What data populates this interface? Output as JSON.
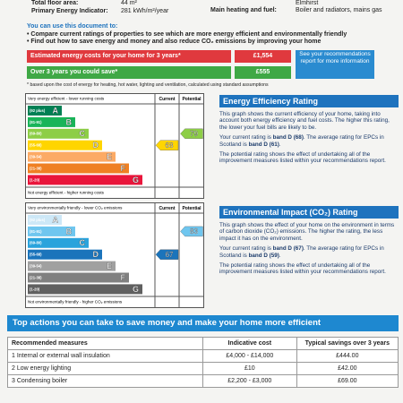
{
  "header": {
    "fields": [
      {
        "label": "Total floor area:",
        "value": "44 m²"
      },
      {
        "label": "Primary Energy Indicator:",
        "value": "281 kWh/m²/year"
      },
      {
        "label": "Main heating and fuel:",
        "value": "Boiler and radiators, mains gas"
      }
    ],
    "org": "Elmhirst"
  },
  "intro": {
    "heading": "You can use this document to:",
    "bullets": [
      "Compare current ratings of properties to see which are more energy efficient and environmentally friendly",
      "Find out how to save energy and money and also reduce CO₂ emissions by improving your home"
    ]
  },
  "costs": {
    "rows": [
      {
        "label": "Estimated energy costs for your home for 3 years*",
        "value": "£1,554"
      },
      {
        "label": "Over 3 years you could save*",
        "value": "£555"
      }
    ],
    "note": "See your recommendations report for more information",
    "footnote": "* based upon the cost of energy for heating, hot water, lighting and ventilation, calculated using standard assumptions"
  },
  "ratings": [
    {
      "top_label": "Very energy efficient - lower running costs",
      "bottom_label": "Not energy efficient - higher running costs",
      "current_label": "Current",
      "potential_label": "Potential",
      "bands": [
        {
          "range": "(92 plus)",
          "letter": "A",
          "color": "#008054"
        },
        {
          "range": "(81-91)",
          "letter": "B",
          "color": "#19b459"
        },
        {
          "range": "(69-80)",
          "letter": "C",
          "color": "#8dce46"
        },
        {
          "range": "(55-68)",
          "letter": "D",
          "color": "#ffd500"
        },
        {
          "range": "(39-54)",
          "letter": "E",
          "color": "#fcaa65"
        },
        {
          "range": "(21-38)",
          "letter": "F",
          "color": "#ef8023"
        },
        {
          "range": "(1-20)",
          "letter": "G",
          "color": "#e9153b"
        }
      ],
      "current": 68,
      "potential": 79,
      "title": "Energy Efficiency Rating",
      "paragraphs": [
        [
          "This graph shows the current efficiency of your home, taking into account both energy efficiency and fuel costs. The higher this rating, the lower your fuel bills are likely to be."
        ],
        [
          "Your current rating is ",
          "band D (68)",
          ". The average rating for EPCs in Scotland is ",
          "band D (61)",
          "."
        ],
        [
          "The potential rating shows the effect of undertaking all of the improvement measures listed within your recommendations report."
        ]
      ]
    },
    {
      "top_label": "Very environmentally friendly - lower CO₂ emissions",
      "bottom_label": "Not environmentally friendly - higher CO₂ emissions",
      "current_label": "Current",
      "potential_label": "Potential",
      "bands": [
        {
          "range": "(92 plus)",
          "letter": "A",
          "color": "#cde8f7"
        },
        {
          "range": "(81-91)",
          "letter": "B",
          "color": "#6fc6ef"
        },
        {
          "range": "(69-80)",
          "letter": "C",
          "color": "#2aa3dc"
        },
        {
          "range": "(55-68)",
          "letter": "D",
          "color": "#1b74bb"
        },
        {
          "range": "(39-54)",
          "letter": "E",
          "color": "#a0a0a0"
        },
        {
          "range": "(21-38)",
          "letter": "F",
          "color": "#808080"
        },
        {
          "range": "(1-20)",
          "letter": "G",
          "color": "#606060"
        }
      ],
      "current": 67,
      "potential": 83,
      "title": "Environmental Impact (CO₂) Rating",
      "paragraphs": [
        [
          "This graph shows the effect of your home on the environment in terms of carbon dioxide (CO₂) emissions. The higher the rating, the less impact it has on the environment."
        ],
        [
          "Your current rating is ",
          "band D (67)",
          ". The average rating for EPCs in Scotland is ",
          "band D (59)",
          "."
        ],
        [
          "The potential rating shows the effect of undertaking all of the improvement measures listed within your recommendations report."
        ]
      ]
    }
  ],
  "actions": {
    "title": "Top actions you can take to save money and make your home more efficient",
    "columns": [
      "Recommended measures",
      "Indicative cost",
      "Typical savings over 3 years"
    ],
    "rows": [
      [
        "1 Internal or external wall insulation",
        "£4,000 - £14,000",
        "£444.00"
      ],
      [
        "2 Low energy lighting",
        "£10",
        "£42.00"
      ],
      [
        "3 Condensing boiler",
        "£2,200 - £3,000",
        "£69.00"
      ]
    ]
  }
}
